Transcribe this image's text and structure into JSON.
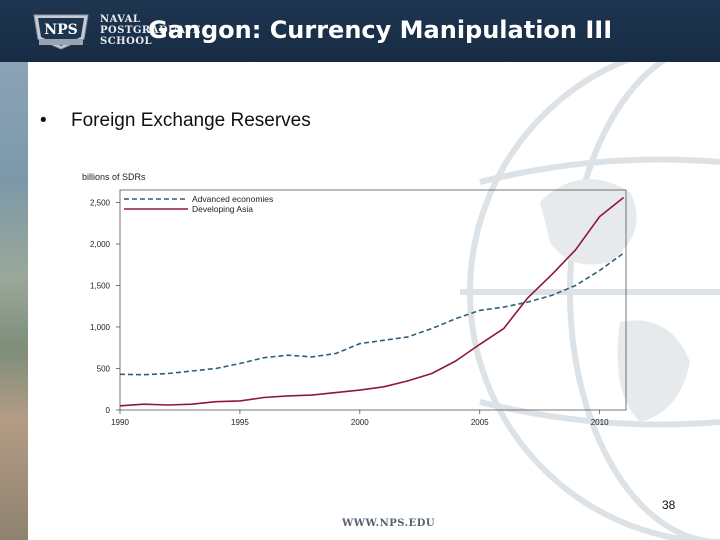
{
  "header": {
    "school_line_1": "NAVAL",
    "school_line_2": "POSTGRADUATE",
    "school_line_3": "SCHOOL",
    "logo_text": "NPS",
    "title": "Gangon: Currency Manipulation III"
  },
  "bullet": {
    "text": "Foreign Exchange Reserves"
  },
  "chart_data": {
    "type": "line",
    "ylabel": "billions of SDRs",
    "x_ticks": [
      1990,
      1995,
      2000,
      2005,
      2010
    ],
    "y_ticks": [
      0,
      500,
      1000,
      1500,
      2000,
      2500
    ],
    "y_tick_labels": [
      "0",
      "500",
      "1,000",
      "1,500",
      "2,000",
      "2,500"
    ],
    "xlim": [
      1990,
      2011.1
    ],
    "ylim": [
      0,
      2650
    ],
    "legend_position": "top-left",
    "series": [
      {
        "name": "Advanced economies",
        "style": "dashed",
        "color": "#2e5f7c",
        "x": [
          1990,
          1991,
          1992,
          1993,
          1994,
          1995,
          1996,
          1997,
          1998,
          1999,
          2000,
          2001,
          2002,
          2003,
          2004,
          2005,
          2006,
          2007,
          2008,
          2009,
          2010,
          2011
        ],
        "values": [
          430,
          425,
          440,
          470,
          500,
          560,
          630,
          660,
          640,
          680,
          800,
          840,
          880,
          980,
          1100,
          1200,
          1240,
          1300,
          1380,
          1500,
          1680,
          1890
        ]
      },
      {
        "name": "Developing Asia",
        "style": "solid",
        "color": "#8e1838",
        "x": [
          1990,
          1991,
          1992,
          1993,
          1994,
          1995,
          1996,
          1997,
          1998,
          1999,
          2000,
          2001,
          2002,
          2003,
          2004,
          2005,
          2006,
          2007,
          2008,
          2009,
          2010,
          2011
        ],
        "values": [
          50,
          70,
          60,
          70,
          100,
          110,
          150,
          170,
          180,
          210,
          240,
          280,
          350,
          440,
          590,
          790,
          980,
          1350,
          1630,
          1930,
          2330,
          2560
        ]
      }
    ]
  },
  "footer": {
    "page_number": "38",
    "url": "WWW.NPS.EDU"
  },
  "colors": {
    "header_bg": "#1e3550",
    "advanced": "#2e5f7c",
    "developing": "#8e1838"
  }
}
